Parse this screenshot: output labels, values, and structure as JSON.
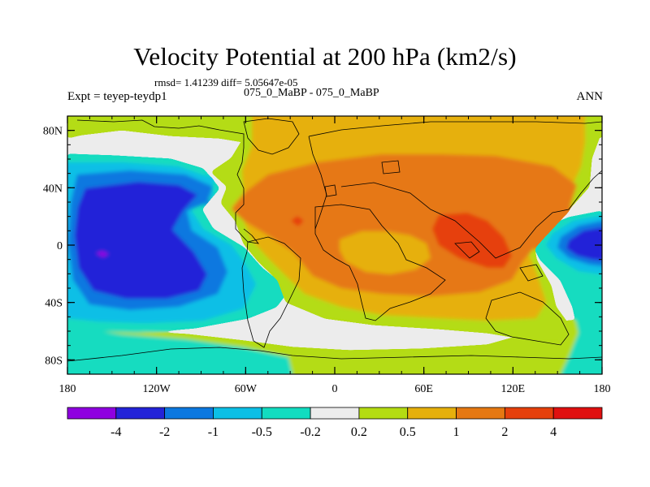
{
  "chart_data": {
    "type": "heatmap",
    "title": "Velocity Potential at 200 hPa (km2/s)",
    "stats": "rmsd= 1.41239 diff= 5.05647e-05",
    "left_label": "Expt = teyep-teydp1",
    "center_label": "075_0_MaBP - 075_0_MaBP",
    "right_label": "ANN",
    "x_ticks": [
      "180",
      "120W",
      "60W",
      "0",
      "60E",
      "120E",
      "180"
    ],
    "x_tick_values": [
      -180,
      -120,
      -60,
      0,
      60,
      120,
      180
    ],
    "y_ticks": [
      "80N",
      "40N",
      "0",
      "40S",
      "80S"
    ],
    "y_tick_values": [
      80,
      40,
      0,
      -40,
      -80
    ],
    "xlim": [
      -180,
      180
    ],
    "ylim": [
      -90,
      90
    ],
    "colorbar": {
      "colors": [
        "#8f00e0",
        "#2424d8",
        "#0c78e0",
        "#0cbfe6",
        "#12dcc0",
        "#ececec",
        "#b4dc12",
        "#e6b00c",
        "#e67812",
        "#e6400c",
        "#e01010"
      ],
      "labels": [
        "-4",
        "-2",
        "-1",
        "-0.5",
        "-0.2",
        "0.2",
        "0.5",
        "1",
        "2",
        "4"
      ],
      "levels": [
        -4,
        -2,
        -1,
        -0.5,
        -0.2,
        0.2,
        0.5,
        1,
        2,
        4
      ]
    }
  }
}
